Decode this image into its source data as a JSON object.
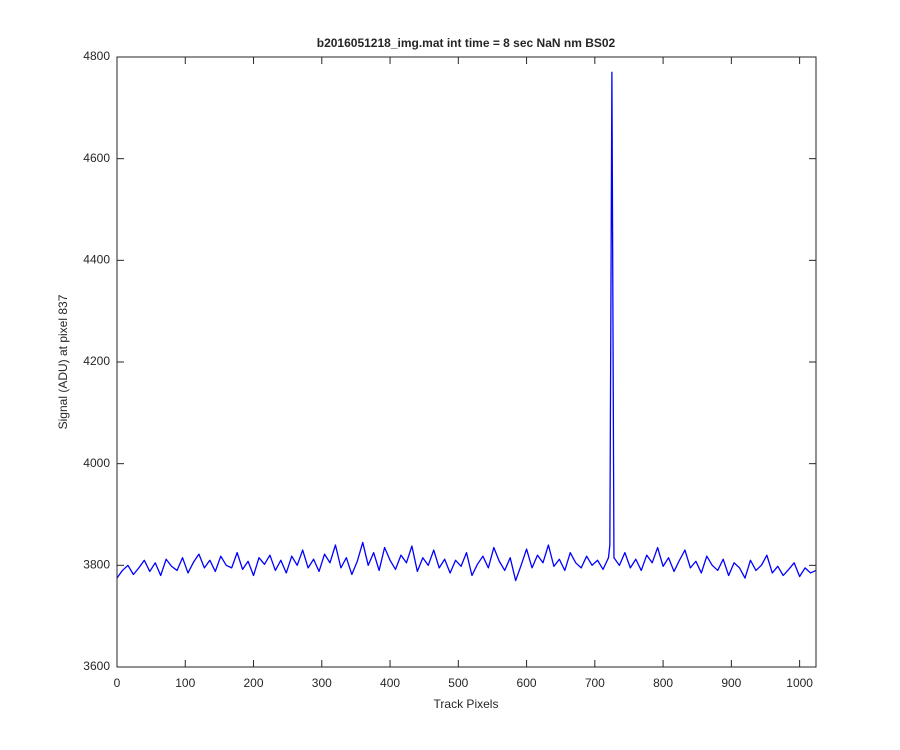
{
  "chart_data": {
    "type": "line",
    "title": "b2016051218_img.mat int time = 8 sec  NaN nm BS02",
    "x_label": "Track Pixels",
    "y_label": "Signal (ADU) at pixel 837",
    "color": "#0000ff",
    "xlim": [
      0,
      1024
    ],
    "ylim": [
      3600,
      4800
    ],
    "xticks": [
      0,
      100,
      200,
      300,
      400,
      500,
      600,
      700,
      800,
      900,
      1000
    ],
    "yticks": [
      3600,
      3800,
      4000,
      4200,
      4400,
      4600,
      4800
    ],
    "x": [
      0,
      8,
      16,
      24,
      32,
      40,
      48,
      56,
      64,
      72,
      80,
      88,
      96,
      104,
      112,
      120,
      128,
      136,
      144,
      152,
      160,
      168,
      176,
      184,
      192,
      200,
      208,
      216,
      224,
      232,
      240,
      248,
      256,
      264,
      272,
      280,
      288,
      296,
      304,
      312,
      320,
      328,
      336,
      344,
      352,
      360,
      368,
      376,
      384,
      392,
      400,
      408,
      416,
      424,
      432,
      440,
      448,
      456,
      464,
      472,
      480,
      488,
      496,
      504,
      512,
      520,
      528,
      536,
      544,
      552,
      560,
      568,
      576,
      584,
      592,
      600,
      608,
      616,
      624,
      632,
      640,
      648,
      656,
      664,
      672,
      680,
      688,
      696,
      704,
      712,
      720,
      722,
      725,
      728,
      736,
      744,
      752,
      760,
      768,
      776,
      784,
      792,
      800,
      808,
      816,
      824,
      832,
      840,
      848,
      856,
      864,
      872,
      880,
      888,
      896,
      904,
      912,
      920,
      928,
      936,
      944,
      952,
      960,
      968,
      976,
      984,
      992,
      1000,
      1008,
      1016,
      1024
    ],
    "values": [
      3775,
      3790,
      3800,
      3782,
      3795,
      3810,
      3788,
      3805,
      3780,
      3812,
      3798,
      3790,
      3815,
      3785,
      3806,
      3822,
      3795,
      3810,
      3788,
      3818,
      3800,
      3795,
      3825,
      3792,
      3808,
      3780,
      3815,
      3802,
      3820,
      3790,
      3810,
      3785,
      3818,
      3800,
      3830,
      3795,
      3812,
      3788,
      3822,
      3805,
      3840,
      3795,
      3815,
      3782,
      3808,
      3845,
      3800,
      3825,
      3790,
      3835,
      3810,
      3792,
      3820,
      3805,
      3838,
      3788,
      3815,
      3800,
      3830,
      3795,
      3812,
      3785,
      3810,
      3798,
      3825,
      3780,
      3802,
      3818,
      3795,
      3835,
      3808,
      3790,
      3815,
      3770,
      3800,
      3832,
      3795,
      3820,
      3805,
      3840,
      3798,
      3812,
      3790,
      3825,
      3805,
      3795,
      3818,
      3800,
      3810,
      3792,
      3815,
      3840,
      4770,
      3815,
      3800,
      3825,
      3795,
      3812,
      3790,
      3820,
      3805,
      3835,
      3798,
      3815,
      3788,
      3810,
      3830,
      3795,
      3808,
      3785,
      3818,
      3800,
      3790,
      3812,
      3780,
      3805,
      3795,
      3775,
      3810,
      3790,
      3800,
      3820,
      3785,
      3798,
      3780,
      3792,
      3805,
      3778,
      3795,
      3785,
      3790
    ]
  }
}
